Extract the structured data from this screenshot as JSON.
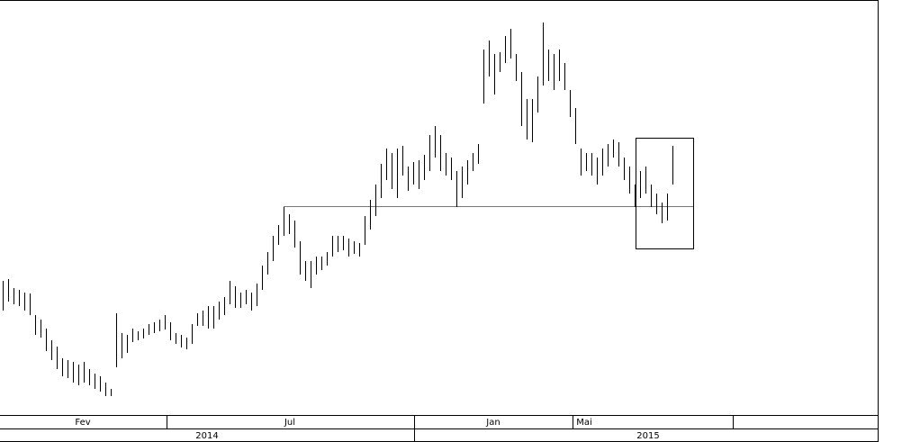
{
  "chart_data": {
    "type": "ohlc",
    "color": "#000000",
    "ylim": [
      0,
      460
    ],
    "high": [
      148,
      150,
      140,
      138,
      135,
      134,
      110,
      105,
      95,
      82,
      75,
      62,
      60,
      58,
      55,
      58,
      50,
      45,
      42,
      35,
      28,
      112,
      90,
      88,
      95,
      92,
      95,
      100,
      102,
      105,
      110,
      102,
      90,
      88,
      85,
      100,
      112,
      115,
      120,
      120,
      125,
      130,
      148,
      142,
      135,
      138,
      135,
      145,
      165,
      180,
      198,
      210,
      230,
      222,
      215,
      192,
      170,
      170,
      175,
      175,
      180,
      198,
      198,
      198,
      195,
      192,
      190,
      220,
      238,
      255,
      278,
      295,
      290,
      295,
      298,
      275,
      280,
      282,
      288,
      310,
      320,
      310,
      290,
      285,
      270,
      275,
      282,
      290,
      300,
      405,
      415,
      400,
      402,
      420,
      428,
      400,
      380,
      350,
      350,
      375,
      435,
      405,
      400,
      405,
      390,
      360,
      340,
      295,
      290,
      290,
      285,
      295,
      300,
      305,
      302,
      285,
      275,
      255,
      270,
      275,
      255,
      245,
      235,
      245,
      298
    ],
    "low": [
      115,
      125,
      122,
      120,
      115,
      110,
      88,
      85,
      70,
      60,
      50,
      42,
      40,
      35,
      32,
      35,
      32,
      28,
      25,
      20,
      20,
      52,
      62,
      68,
      80,
      82,
      84,
      88,
      90,
      92,
      94,
      82,
      78,
      74,
      72,
      78,
      98,
      98,
      95,
      95,
      105,
      110,
      122,
      118,
      118,
      122,
      115,
      120,
      138,
      155,
      170,
      188,
      198,
      200,
      185,
      155,
      148,
      140,
      155,
      160,
      165,
      175,
      180,
      182,
      175,
      178,
      175,
      188,
      205,
      220,
      240,
      260,
      250,
      240,
      265,
      248,
      255,
      250,
      260,
      270,
      285,
      270,
      265,
      260,
      230,
      240,
      255,
      270,
      278,
      345,
      375,
      355,
      380,
      390,
      395,
      370,
      320,
      305,
      302,
      335,
      365,
      370,
      360,
      370,
      360,
      330,
      300,
      265,
      270,
      265,
      255,
      265,
      275,
      285,
      275,
      260,
      245,
      230,
      240,
      245,
      230,
      222,
      212,
      215,
      255
    ],
    "x_axis": {
      "months": [
        "Fev",
        "Jul",
        "Jan",
        "Mai"
      ],
      "years": [
        "2014",
        "2015"
      ]
    }
  }
}
